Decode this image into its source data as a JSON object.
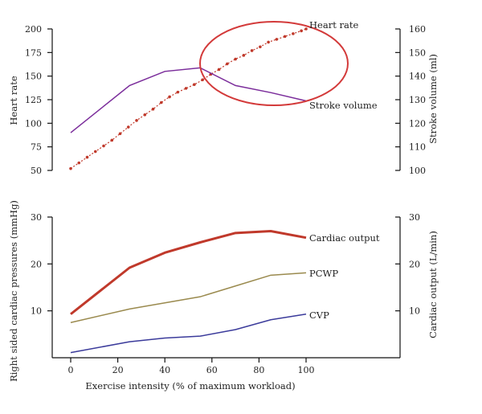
{
  "chart_data": [
    {
      "type": "line",
      "x": [
        0,
        25,
        40,
        55,
        70,
        85,
        100
      ],
      "xlim": [
        -10,
        140
      ],
      "y_left_label": "Heart rate",
      "y_left_ticks": [
        50,
        75,
        100,
        125,
        150,
        175,
        200
      ],
      "y_left_lim": [
        50,
        200
      ],
      "y_right_label": "Stroke volume (ml)",
      "y_right_ticks": [
        100,
        110,
        120,
        130,
        140,
        150,
        160
      ],
      "y_right_lim": [
        100,
        160
      ],
      "series": [
        {
          "name": "Heart rate",
          "axis": "left",
          "color": "#c0392b",
          "style": "dotted-markers",
          "x": [
            0,
            3.5,
            7,
            10.5,
            14,
            17.5,
            21,
            24.5,
            28,
            31.5,
            35,
            38.5,
            42,
            45.5,
            49,
            52.5,
            56,
            59.5,
            63,
            66.5,
            70,
            73.5,
            77,
            80.5,
            84,
            87.5,
            91,
            94.5,
            98,
            100
          ],
          "values": [
            52,
            58,
            64,
            70,
            76,
            82,
            89,
            96,
            103,
            109,
            115,
            122,
            128,
            133,
            137,
            141,
            146,
            152,
            157,
            163,
            168,
            172,
            177,
            181,
            186,
            189,
            192,
            195,
            198,
            200
          ]
        },
        {
          "name": "Stroke volume",
          "axis": "right",
          "color": "#7b2d9b",
          "style": "solid",
          "x": [
            0,
            25,
            40,
            55,
            70,
            85,
            100
          ],
          "values": [
            116,
            136,
            142,
            143.5,
            136,
            133,
            129.5
          ]
        }
      ],
      "annotation": {
        "shape": "ellipse",
        "color": "#d33a3a",
        "around_x": [
          55,
          118
        ],
        "around_y_left": [
          113,
          203
        ]
      }
    },
    {
      "type": "line",
      "x": [
        0,
        25,
        40,
        55,
        70,
        85,
        100
      ],
      "xlim": [
        -10,
        140
      ],
      "xlabel": "Exercise intensity (% of maximum workload)",
      "x_ticks": [
        0,
        20,
        40,
        60,
        80,
        100
      ],
      "y_left_label": "Right sided cardiac pressures (mmHg)",
      "y_left_ticks": [
        10,
        20,
        30
      ],
      "y_left_lim": [
        0,
        30
      ],
      "y_right_label": "Cardiac output (L/min)",
      "y_right_ticks": [
        10,
        20,
        30
      ],
      "y_right_lim": [
        0,
        30
      ],
      "series": [
        {
          "name": "Cardiac output",
          "color": "#c0392b",
          "width": 3,
          "values": [
            9.3,
            19.2,
            22.4,
            24.6,
            26.6,
            27,
            25.6
          ]
        },
        {
          "name": "PCWP",
          "color": "#9a8a4e",
          "width": 1.5,
          "values": [
            7.5,
            10.4,
            11.7,
            13,
            15.3,
            17.6,
            18.1
          ]
        },
        {
          "name": "CVP",
          "color": "#3b3b9b",
          "width": 1.5,
          "values": [
            1.1,
            3.4,
            4.2,
            4.6,
            6,
            8.1,
            9.3
          ]
        }
      ]
    }
  ]
}
